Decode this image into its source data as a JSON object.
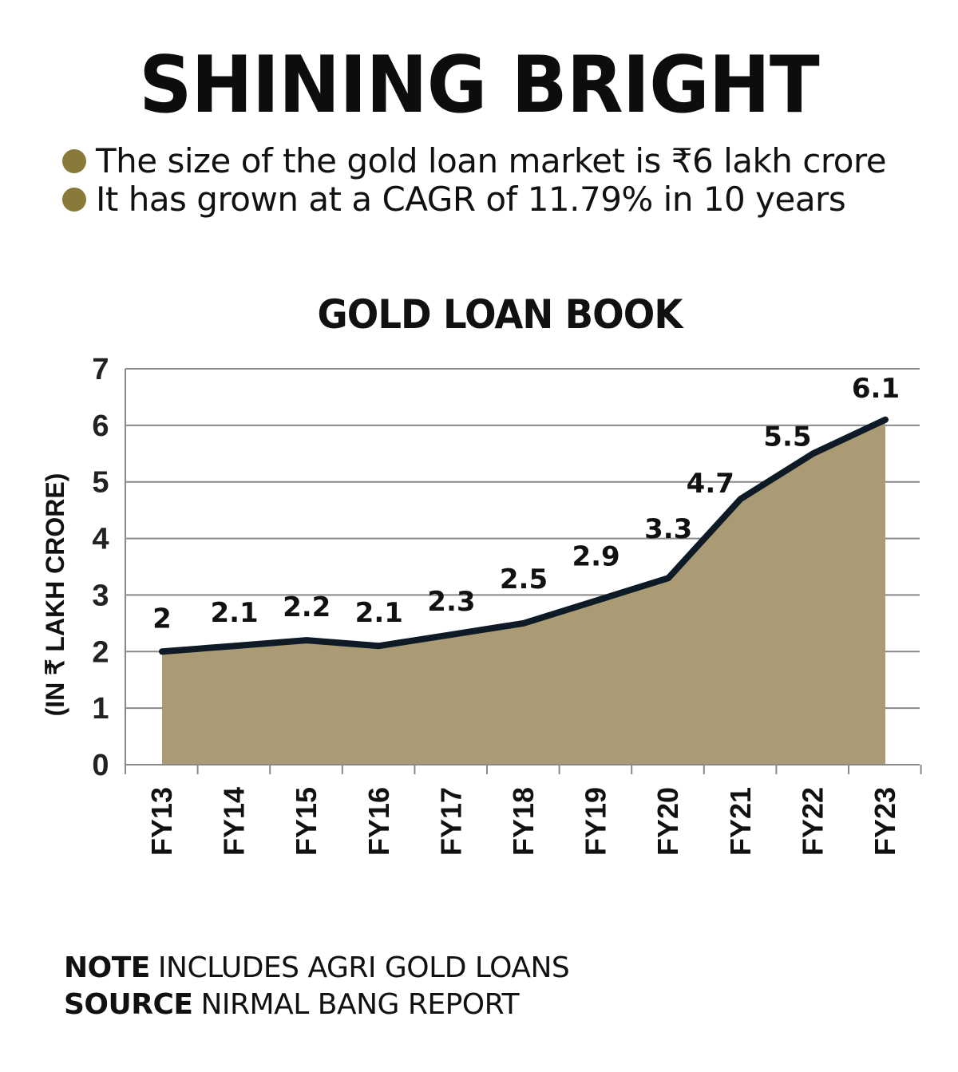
{
  "headline": "SHINING BRIGHT",
  "bullets": [
    "The size of the gold loan market is ₹6 lakh crore",
    "It has grown at a CAGR of 11.79% in 10 years"
  ],
  "colors": {
    "bullet": "#8a7a3a",
    "area_fill": "#aa9b74",
    "line": "#0e1a26",
    "grid": "#888888"
  },
  "chart_data": {
    "type": "area",
    "title": "GOLD LOAN BOOK",
    "ylabel": "(IN ₹ LAKH CRORE)",
    "xlabel": "",
    "categories": [
      "FY13",
      "FY14",
      "FY15",
      "FY16",
      "FY17",
      "FY18",
      "FY19",
      "FY20",
      "FY21",
      "FY22",
      "FY23"
    ],
    "values": [
      2,
      2.1,
      2.2,
      2.1,
      2.3,
      2.5,
      2.9,
      3.3,
      4.7,
      5.5,
      6.1
    ],
    "data_labels": [
      "2",
      "2.1",
      "2.2",
      "2.1",
      "2.3",
      "2.5",
      "2.9",
      "3.3",
      "4.7",
      "5.5",
      "6.1"
    ],
    "ylim": [
      0,
      7
    ],
    "yticks": [
      "0",
      "1",
      "2",
      "3",
      "4",
      "5",
      "6",
      "7"
    ],
    "grid": true,
    "legend": "none"
  },
  "footer": {
    "note_label": "NOTE",
    "note_text": "INCLUDES AGRI GOLD LOANS",
    "source_label": "SOURCE",
    "source_text": "NIRMAL BANG REPORT"
  }
}
